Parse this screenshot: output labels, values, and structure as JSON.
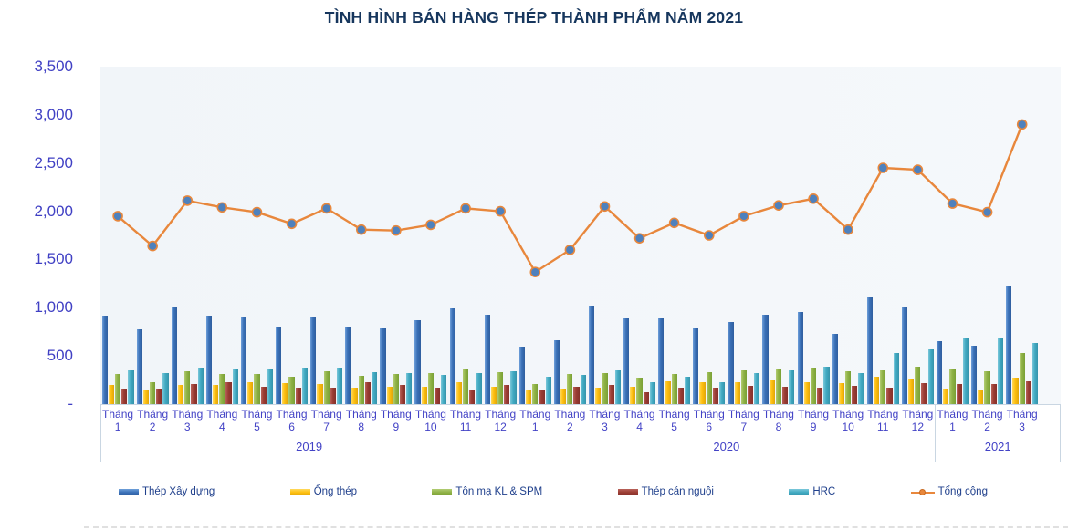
{
  "title": "TÌNH HÌNH BÁN HÀNG THÉP THÀNH PHẨM NĂM 2021",
  "colors": {
    "title_text": "#16365D",
    "axis_text": "#4343C6",
    "legend_text": "#20408C",
    "plot_background": "#F3F7FA",
    "axis_line": "#C9D6E2"
  },
  "chart_data": {
    "type": "combo-bar-line",
    "title": "TÌNH HÌNH BÁN HÀNG THÉP THÀNH PHẨM NĂM 2021",
    "grid": false,
    "legend_position": "bottom",
    "y_axis": {
      "min": 0,
      "max": 3500,
      "step": 500,
      "tick_labels": [
        "3,500",
        "3,000",
        "2,500",
        "2,000",
        "1,500",
        "1,000",
        "500",
        "-"
      ],
      "tick_values": [
        3500,
        3000,
        2500,
        2000,
        1500,
        1000,
        500,
        0
      ]
    },
    "categories": [
      "Tháng 1",
      "Tháng 2",
      "Tháng 3",
      "Tháng 4",
      "Tháng 5",
      "Tháng 6",
      "Tháng 7",
      "Tháng 8",
      "Tháng 9",
      "Tháng 10",
      "Tháng 11",
      "Tháng 12",
      "Tháng 1",
      "Tháng 2",
      "Tháng 3",
      "Tháng 4",
      "Tháng 5",
      "Tháng 6",
      "Tháng 7",
      "Tháng 8",
      "Tháng 9",
      "Tháng 10",
      "Tháng 11",
      "Tháng 12",
      "Tháng 1",
      "Tháng 2",
      "Tháng 3"
    ],
    "year_bands": [
      {
        "label": "2019",
        "span": 12
      },
      {
        "label": "2020",
        "span": 12
      },
      {
        "label": "2021",
        "span": 3
      }
    ],
    "series": [
      {
        "id": "thep-xay-dung",
        "name": "Thép Xây dựng",
        "type": "bar",
        "color": "#3A70B7",
        "color_light": "#6FA0DA",
        "color_dark": "#2F5E9E",
        "values": [
          920,
          780,
          1000,
          920,
          910,
          800,
          910,
          800,
          790,
          870,
          990,
          930,
          600,
          660,
          1020,
          890,
          900,
          790,
          850,
          930,
          960,
          730,
          1120,
          1000,
          650,
          610,
          1230
        ]
      },
      {
        "id": "ong-thep",
        "name": "Ống thép",
        "type": "bar",
        "color": "#FEBF0F",
        "color_light": "#FFD95E",
        "color_dark": "#E0A50A",
        "values": [
          200,
          150,
          200,
          195,
          225,
          220,
          210,
          175,
          180,
          180,
          225,
          180,
          140,
          160,
          170,
          180,
          240,
          225,
          230,
          245,
          230,
          220,
          280,
          265,
          160,
          155,
          270
        ]
      },
      {
        "id": "ton-ma-kl-spm",
        "name": "Tôn mạ KL & SPM",
        "type": "bar",
        "color": "#8FB246",
        "color_light": "#B2CC73",
        "color_dark": "#79A035",
        "values": [
          310,
          230,
          340,
          310,
          310,
          280,
          340,
          290,
          310,
          320,
          370,
          330,
          210,
          310,
          320,
          270,
          310,
          330,
          360,
          365,
          375,
          340,
          350,
          390,
          365,
          345,
          530
        ]
      },
      {
        "id": "thep-can-nguoi",
        "name": "Thép cán nguội",
        "type": "bar",
        "color": "#9A3C33",
        "color_light": "#B9625A",
        "color_dark": "#84312B",
        "values": [
          165,
          165,
          210,
          230,
          180,
          170,
          175,
          225,
          200,
          170,
          155,
          200,
          140,
          180,
          200,
          120,
          170,
          175,
          190,
          180,
          175,
          185,
          170,
          215,
          210,
          210,
          235
        ]
      },
      {
        "id": "hrc",
        "name": "HRC",
        "type": "bar",
        "color": "#41AAC2",
        "color_light": "#7CC8DA",
        "color_dark": "#3593AA",
        "values": [
          350,
          320,
          380,
          370,
          370,
          380,
          380,
          330,
          320,
          300,
          320,
          340,
          280,
          300,
          350,
          230,
          280,
          230,
          320,
          360,
          390,
          325,
          530,
          575,
          680,
          680,
          630
        ]
      },
      {
        "id": "tong-cong",
        "name": "Tổng cộng",
        "type": "line",
        "color": "#E8873C",
        "marker_fill": "#4E81BD",
        "values": [
          1950,
          1640,
          2110,
          2040,
          1990,
          1870,
          2030,
          1810,
          1800,
          1860,
          2030,
          2000,
          1370,
          1600,
          2050,
          1720,
          1880,
          1750,
          1950,
          2060,
          2130,
          1810,
          2450,
          2430,
          2080,
          1990,
          2900
        ]
      }
    ]
  }
}
